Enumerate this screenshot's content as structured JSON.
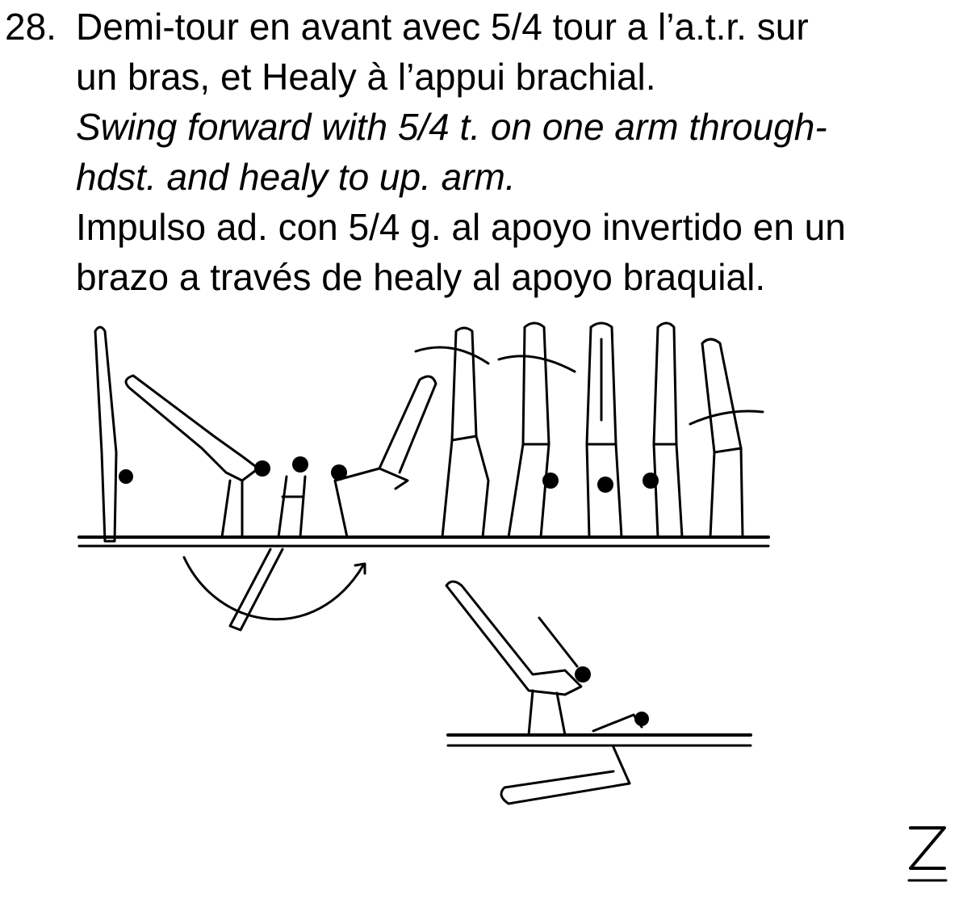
{
  "element": {
    "number": "28.",
    "french": [
      "Demi-tour en avant avec 5/4 tour a l’a.t.r. sur",
      "un bras, et Healy à l’appui brachial."
    ],
    "english": [
      "Swing forward with 5/4 t. on one arm through-",
      "hdst. and healy to up. arm."
    ],
    "spanish": [
      "Impulso ad. con 5/4 g. al apoyo invertido en un",
      "brazo a través de healy al apoyo braquial."
    ]
  },
  "figure": {
    "description_symbol": "Z"
  }
}
